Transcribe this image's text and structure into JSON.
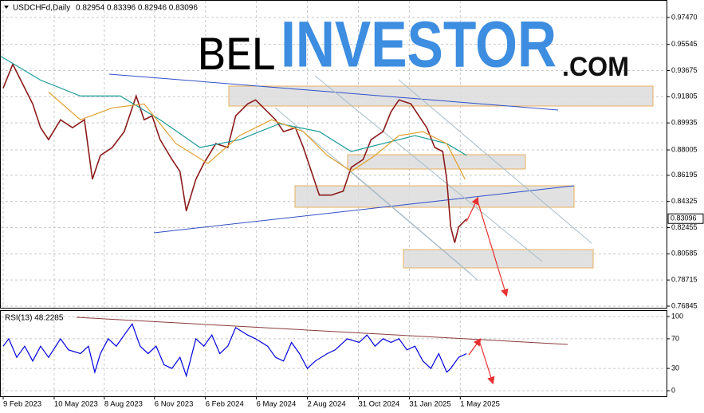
{
  "chart_data": [
    {
      "type": "line",
      "title": "USDCHFd,Daily",
      "subtitle": "0.82954 0.83396 0.82946 0.83096",
      "logo": [
        "BEL",
        "INVESTOR",
        ".COM"
      ],
      "last_price": {
        "value": 0.83096,
        "label": "0.83096"
      },
      "xlim": [
        0,
        836
      ],
      "ylim": [
        0.7673,
        0.9866
      ],
      "grid": true,
      "xticks": [
        {
          "value": 3,
          "label": "9 Feb 2023"
        },
        {
          "value": 67,
          "label": "10 May 2023"
        },
        {
          "value": 130,
          "label": "8 Aug 2023"
        },
        {
          "value": 193,
          "label": "6 Nov 2023"
        },
        {
          "value": 257,
          "label": "6 Feb 2024"
        },
        {
          "value": 321,
          "label": "6 May 2024"
        },
        {
          "value": 385,
          "label": "2 Aug 2024"
        },
        {
          "value": 449,
          "label": "31 Oct 2024"
        },
        {
          "value": 513,
          "label": "31 Jan 2025"
        },
        {
          "value": 577,
          "label": "1 May 2025"
        }
      ],
      "yticks": [
        {
          "value": 0.9747,
          "label": "0.97470"
        },
        {
          "value": 0.95545,
          "label": "0.95545"
        },
        {
          "value": 0.93675,
          "label": "0.93675"
        },
        {
          "value": 0.91805,
          "label": "0.91805"
        },
        {
          "value": 0.89935,
          "label": "0.89935"
        },
        {
          "value": 0.88005,
          "label": "0.88005"
        },
        {
          "value": 0.86195,
          "label": "0.86195"
        },
        {
          "value": 0.84325,
          "label": "0.84325"
        },
        {
          "value": 0.82455,
          "label": "0.82455"
        },
        {
          "value": 0.80585,
          "label": "0.80585"
        },
        {
          "value": 0.78715,
          "label": "0.78715"
        },
        {
          "value": 0.76845,
          "label": "0.76845"
        }
      ],
      "series": [
        {
          "color": "#8b1a1a",
          "x": [
            3,
            15,
            25,
            40,
            50,
            60,
            75,
            90,
            105,
            115,
            125,
            140,
            155,
            170,
            180,
            190,
            200,
            215,
            225,
            233,
            245,
            255,
            270,
            285,
            295,
            310,
            320,
            330,
            345,
            355,
            370,
            380,
            390,
            400,
            415,
            430,
            440,
            455,
            465,
            480,
            490,
            500,
            515,
            525,
            535,
            545,
            555,
            560,
            565,
            570,
            575,
            585
          ],
          "values": [
            0.92427,
            0.94127,
            0.92993,
            0.91293,
            0.89593,
            0.88743,
            0.9016,
            0.89593,
            0.9016,
            0.8591,
            0.8761,
            0.88177,
            0.8931,
            0.9186,
            0.9016,
            0.90443,
            0.88743,
            0.87327,
            0.86477,
            0.83643,
            0.8591,
            0.87043,
            0.8846,
            0.88177,
            0.90443,
            0.91293,
            0.91577,
            0.9101,
            0.9016,
            0.8931,
            0.89593,
            0.88177,
            0.86477,
            0.84777,
            0.84777,
            0.8506,
            0.8676,
            0.87327,
            0.88743,
            0.8931,
            0.90727,
            0.91577,
            0.91293,
            0.90443,
            0.89593,
            0.88177,
            0.87893,
            0.8591,
            0.8251,
            0.81377,
            0.8251,
            0.83077
          ]
        },
        {
          "color": "#1a9a9a",
          "x": [
            0,
            50,
            100,
            150,
            200,
            250,
            300,
            350,
            400,
            440,
            480,
            520,
            560,
            585
          ],
          "values": [
            0.94693,
            0.92993,
            0.9186,
            0.9186,
            0.9016,
            0.8818,
            0.8874,
            0.8988,
            0.8931,
            0.8789,
            0.8846,
            0.8903,
            0.8846,
            0.8761
          ]
        },
        {
          "color": "#e0a030",
          "x": [
            60,
            100,
            140,
            180,
            220,
            260,
            300,
            340,
            380,
            410,
            440,
            470,
            500,
            530,
            560,
            583
          ],
          "values": [
            0.9214,
            0.9016,
            0.9101,
            0.9129,
            0.8846,
            0.8704,
            0.8903,
            0.9016,
            0.8931,
            0.8761,
            0.8648,
            0.8761,
            0.8903,
            0.8931,
            0.8846,
            0.8591
          ]
        }
      ]
    },
    {
      "type": "line",
      "title": "RSI(13) 48.2285",
      "xlim": [
        0,
        836
      ],
      "ylim": [
        -7.5,
        107.5
      ],
      "grid": true,
      "yticks": [
        100,
        70,
        30,
        0
      ],
      "series": [
        {
          "color": "#0000dd",
          "x": [
            3,
            10,
            20,
            30,
            40,
            50,
            60,
            75,
            85,
            100,
            110,
            118,
            125,
            135,
            145,
            155,
            165,
            175,
            185,
            195,
            205,
            215,
            225,
            233,
            245,
            255,
            265,
            275,
            285,
            295,
            310,
            320,
            335,
            345,
            355,
            365,
            375,
            385,
            395,
            410,
            420,
            435,
            450,
            460,
            470,
            480,
            490,
            500,
            510,
            520,
            530,
            540,
            550,
            560,
            565,
            575,
            585
          ],
          "values": [
            60,
            70,
            45,
            60,
            40,
            60,
            45,
            70,
            55,
            50,
            60,
            25,
            50,
            70,
            60,
            75,
            90,
            60,
            50,
            60,
            35,
            30,
            45,
            20,
            70,
            60,
            75,
            50,
            60,
            85,
            75,
            70,
            60,
            45,
            40,
            65,
            50,
            30,
            40,
            50,
            55,
            70,
            65,
            75,
            60,
            70,
            65,
            70,
            55,
            60,
            40,
            30,
            50,
            25,
            30,
            45,
            50
          ]
        }
      ]
    }
  ]
}
